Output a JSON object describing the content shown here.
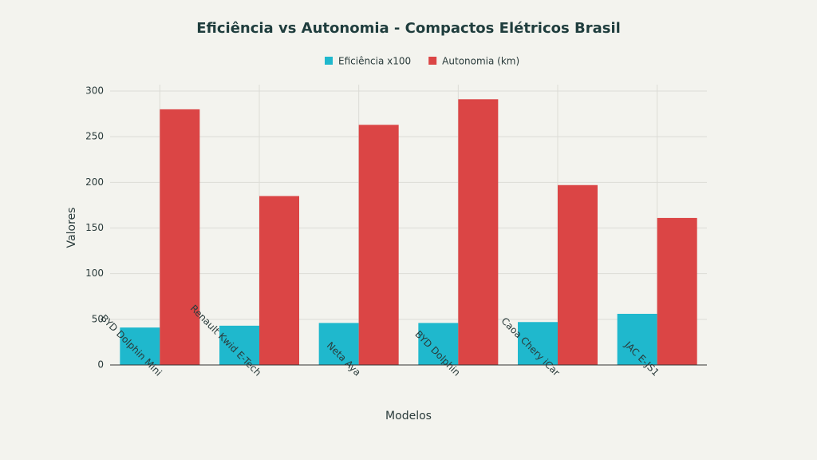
{
  "chart_data": {
    "type": "bar",
    "title": "Eficiência vs Autonomia - Compactos Elétricos Brasil",
    "x_label": "Modelos",
    "y_label": "Valores",
    "categories": [
      "BYD Dolphin Mini",
      "Renault Kwid E-Tech",
      "Neta Aya",
      "BYD Dolphin",
      "Caoa Chery iCar",
      "JAC E-JS1"
    ],
    "series": [
      {
        "name": "Eficiência x100",
        "color": "#1fb8cd",
        "values": [
          41,
          43,
          46,
          46,
          47,
          56
        ]
      },
      {
        "name": "Autonomia (km)",
        "color": "#db4545",
        "values": [
          280,
          185,
          263,
          291,
          197,
          161
        ]
      }
    ],
    "ylim": [
      0,
      300
    ],
    "yticks": [
      0,
      50,
      100,
      150,
      200,
      250,
      300
    ],
    "grid": true,
    "legend": "top"
  }
}
